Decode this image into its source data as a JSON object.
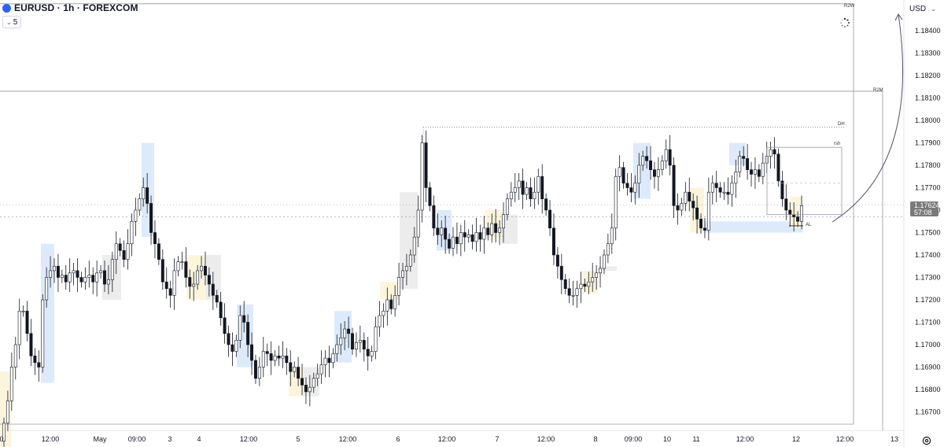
{
  "header": {
    "symbol_title": "EURUSD · 1h · FOREXCOM",
    "indicator_count": "5",
    "currency": "USD"
  },
  "price_label": {
    "price": "1.17624",
    "countdown": "57:08"
  },
  "colors": {
    "up": "#ffffff",
    "down": "#131722",
    "wick": "#131722",
    "zone_blue": "#ddeafb",
    "zone_yellow": "#fbf5dc",
    "zone_gray": "#ececec",
    "price_label_bg": "#7a7a7a"
  },
  "annotations": [
    {
      "text": "R2W",
      "price": 1.1852
    },
    {
      "text": "R2M",
      "price": 1.1813
    },
    {
      "text": "DH",
      "price": 1.1797
    },
    {
      "text": "rsh",
      "price": 1.1788
    },
    {
      "text": "AL",
      "price": 1.1753
    }
  ],
  "chart_data": {
    "type": "candlestick",
    "title": "EURUSD · 1h · FOREXCOM",
    "y_unit": "USD",
    "ylim": [
      1.1645,
      1.18535
    ],
    "y_ticks": [
      "1.18400",
      "1.18300",
      "1.18200",
      "1.18100",
      "1.18000",
      "1.17900",
      "1.17800",
      "1.17700",
      "1.17600",
      "1.17500",
      "1.17400",
      "1.17300",
      "1.17200",
      "1.17100",
      "1.17000",
      "1.16900",
      "1.16800",
      "1.16700"
    ],
    "x_ticks": [
      "0",
      "12:00",
      "May",
      "09:00",
      "3",
      "4",
      "12:00",
      "5",
      "12:00",
      "6",
      "12:00",
      "7",
      "12:00",
      "8",
      "09:00",
      "10",
      "11",
      "12:00",
      "12",
      "12:00",
      "13"
    ],
    "last_price": 1.17624,
    "levels": [
      {
        "name": "R2W",
        "value": 1.1852
      },
      {
        "name": "R2M",
        "value": 1.1813
      },
      {
        "name": "DH",
        "value": 1.1797
      }
    ],
    "closes": [
      1.1665,
      1.1675,
      1.169,
      1.17,
      1.1715,
      1.1715,
      1.1705,
      1.1695,
      1.1692,
      1.169,
      1.172,
      1.173,
      1.1733,
      1.1735,
      1.173,
      1.1731,
      1.1728,
      1.1732,
      1.1733,
      1.173,
      1.1728,
      1.173,
      1.1731,
      1.1728,
      1.1732,
      1.1733,
      1.1727,
      1.1729,
      1.1738,
      1.1745,
      1.1742,
      1.1738,
      1.1745,
      1.1755,
      1.176,
      1.1765,
      1.177,
      1.1763,
      1.175,
      1.1745,
      1.1738,
      1.1728,
      1.1725,
      1.1722,
      1.1733,
      1.1737,
      1.1737,
      1.173,
      1.1726,
      1.1727,
      1.1733,
      1.1735,
      1.1731,
      1.1727,
      1.1722,
      1.1719,
      1.1712,
      1.1705,
      1.17,
      1.1697,
      1.1702,
      1.1713,
      1.171,
      1.17,
      1.1693,
      1.1685,
      1.169,
      1.1697,
      1.1696,
      1.1693,
      1.1695,
      1.1694,
      1.1695,
      1.1692,
      1.1688,
      1.169,
      1.1685,
      1.1682,
      1.1679,
      1.1681,
      1.1685,
      1.1687,
      1.1691,
      1.1694,
      1.1692,
      1.1696,
      1.17,
      1.1703,
      1.1707,
      1.1705,
      1.1698,
      1.1701,
      1.1702,
      1.1698,
      1.1695,
      1.1697,
      1.1708,
      1.1713,
      1.1715,
      1.172,
      1.1716,
      1.1722,
      1.173,
      1.1733,
      1.1735,
      1.174,
      1.1748,
      1.176,
      1.179,
      1.177,
      1.1762,
      1.1752,
      1.1749,
      1.1752,
      1.1747,
      1.1743,
      1.1748,
      1.1745,
      1.175,
      1.1748,
      1.1749,
      1.1746,
      1.175,
      1.1747,
      1.1752,
      1.1749,
      1.1754,
      1.175,
      1.1752,
      1.1758,
      1.1765,
      1.1768,
      1.177,
      1.1773,
      1.1767,
      1.177,
      1.1765,
      1.1768,
      1.1775,
      1.1765,
      1.176,
      1.1752,
      1.174,
      1.1735,
      1.1729,
      1.1725,
      1.1722,
      1.1722,
      1.1725,
      1.1727,
      1.1726,
      1.1728,
      1.173,
      1.1732,
      1.1734,
      1.174,
      1.1745,
      1.1752,
      1.1775,
      1.1779,
      1.1772,
      1.177,
      1.1768,
      1.1772,
      1.178,
      1.1784,
      1.1782,
      1.1778,
      1.1775,
      1.1778,
      1.1782,
      1.1787,
      1.178,
      1.1762,
      1.176,
      1.1763,
      1.1768,
      1.1764,
      1.1761,
      1.1756,
      1.1752,
      1.1751,
      1.1768,
      1.1772,
      1.177,
      1.1768,
      1.1768,
      1.1767,
      1.1772,
      1.1777,
      1.1784,
      1.1783,
      1.1778,
      1.1776,
      1.1778,
      1.1775,
      1.1781,
      1.1784,
      1.1787,
      1.1785,
      1.1773,
      1.1765,
      1.176,
      1.1758,
      1.1757,
      1.1755,
      1.1762
    ]
  }
}
